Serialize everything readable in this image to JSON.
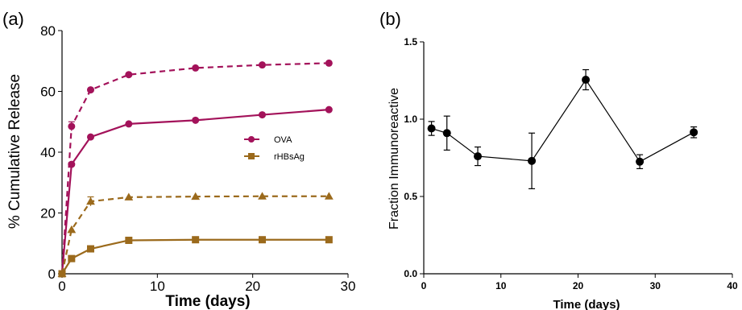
{
  "panel_a": {
    "label": "(a)",
    "chart_data": {
      "type": "line",
      "xlabel": "Time (days)",
      "ylabel": "% Cumulative Release",
      "xlim": [
        0,
        30
      ],
      "ylim": [
        0,
        80
      ],
      "xticks": [
        0,
        10,
        20,
        30
      ],
      "yticks": [
        0,
        20,
        40,
        60,
        80
      ],
      "legend_placement": "right",
      "series": [
        {
          "name": "OVA",
          "marker": "circle",
          "color": "#a3125a",
          "line": "solid",
          "x": [
            0,
            1,
            3,
            7,
            14,
            21,
            28
          ],
          "y": [
            0,
            36,
            45,
            49.3,
            50.5,
            52.3,
            54
          ]
        },
        {
          "name": "",
          "marker": "circle",
          "color": "#a3125a",
          "line": "dashed",
          "x": [
            0,
            1,
            3,
            7,
            14,
            21,
            28
          ],
          "y": [
            0,
            48.5,
            60.5,
            65.5,
            67.7,
            68.7,
            69.3
          ],
          "err": [
            0,
            1.5,
            0,
            0,
            0,
            0,
            0
          ]
        },
        {
          "name": "rHBsAg",
          "marker": "square",
          "color": "#9b6a1c",
          "line": "solid",
          "x": [
            0,
            1,
            3,
            7,
            14,
            21,
            28
          ],
          "y": [
            0,
            5,
            8.2,
            11,
            11.2,
            11.2,
            11.2
          ]
        },
        {
          "name": "",
          "marker": "triangle",
          "color": "#9b6a1c",
          "line": "dashed",
          "x": [
            0,
            1,
            3,
            7,
            14,
            21,
            28
          ],
          "y": [
            0,
            14.5,
            23.8,
            25.2,
            25.4,
            25.5,
            25.5
          ],
          "err": [
            0,
            0,
            1.5,
            0,
            0,
            0,
            0
          ]
        }
      ]
    }
  },
  "panel_b": {
    "label": "(b)",
    "chart_data": {
      "type": "line",
      "xlabel": "Time (days)",
      "ylabel": "Fraction Immunoreactive",
      "xlim": [
        0,
        40
      ],
      "ylim": [
        0,
        1.5
      ],
      "xticks": [
        0,
        10,
        20,
        30,
        40
      ],
      "yticks": [
        0.0,
        0.5,
        1.0,
        1.5
      ],
      "ytick_labels": [
        "0.0",
        "0.5",
        "1.0",
        "1.5"
      ],
      "series": [
        {
          "name": "",
          "marker": "circle",
          "color": "#000000",
          "line": "solid",
          "x": [
            1,
            3,
            7,
            14,
            21,
            28,
            35
          ],
          "y": [
            0.94,
            0.91,
            0.76,
            0.73,
            1.255,
            0.725,
            0.915
          ],
          "err": [
            0.045,
            0.11,
            0.06,
            0.18,
            0.065,
            0.045,
            0.035
          ]
        }
      ]
    }
  }
}
